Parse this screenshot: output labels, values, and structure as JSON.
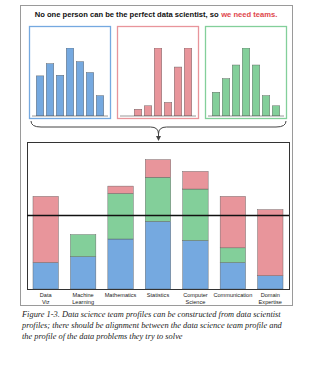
{
  "header": {
    "title": "No one person can be the perfect data scientist, so",
    "title_emphasis": "we need teams."
  },
  "chart_data": [
    {
      "type": "bar",
      "categories": [
        null,
        null,
        null,
        null,
        null,
        null,
        null
      ],
      "values": [
        59,
        77,
        60,
        100,
        80,
        64,
        30
      ],
      "color": "#75a9e0",
      "ylim": [
        0,
        100
      ],
      "tick_labels": false
    },
    {
      "type": "bar",
      "categories": [
        null,
        null,
        null,
        null,
        null,
        null,
        null
      ],
      "values": [
        0,
        10,
        15,
        100,
        20,
        72,
        100
      ],
      "color": "#e8959b",
      "ylim": [
        0,
        100
      ],
      "tick_labels": false
    },
    {
      "type": "bar",
      "categories": [
        null,
        null,
        null,
        null,
        null,
        null,
        null
      ],
      "values": [
        35,
        55,
        75,
        100,
        75,
        30,
        15
      ],
      "color": "#83cf9a",
      "ylim": [
        0,
        100
      ],
      "tick_labels": false
    },
    {
      "type": "bar",
      "stacked": true,
      "categories": [
        "Data Viz",
        "Machine Learning",
        "Mathematics",
        "Statistics",
        "Computer Science",
        "Communication",
        "Domain Expertise"
      ],
      "series": [
        {
          "color": "#75a9e0",
          "values": [
            18,
            22,
            34,
            46,
            33,
            18,
            9
          ]
        },
        {
          "color": "#83cf9a",
          "values": [
            0,
            15,
            31,
            30,
            35,
            10,
            0
          ]
        },
        {
          "color": "#e8959b",
          "values": [
            45,
            0,
            5,
            12,
            12,
            35,
            45
          ]
        }
      ],
      "ylim": [
        0,
        100
      ],
      "threshold": 50,
      "tick_labels": "x"
    }
  ],
  "caption": "Figure 1-3. Data science team profiles can be constructed from data scientist profiles; there should be alignment between the data science team profile and the profile of the data problems they try to solve"
}
